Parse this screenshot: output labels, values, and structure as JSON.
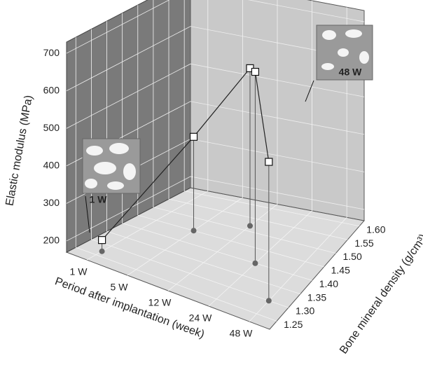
{
  "chart_data": {
    "type": "scatter3d",
    "ylabel": "Elastic modulus (MPa)",
    "xlabel": "Period after implantation (week)",
    "zlabel": "Bone mineral density (g/cm³)",
    "categories": [
      "1 W",
      "5 W",
      "12 W",
      "24 W",
      "48 W"
    ],
    "values": [
      200,
      420,
      590,
      680,
      540
    ],
    "bmd": [
      1.27,
      1.45,
      1.52,
      1.4,
      1.3
    ],
    "ylim": [
      170,
      730
    ],
    "yticks": [
      200,
      300,
      400,
      500,
      600,
      700
    ],
    "zlim": [
      1.22,
      1.62
    ],
    "zticks": [
      1.25,
      {
        "value": 1.3,
        "label": "1.30"
      },
      1.35,
      {
        "value": 1.4,
        "label": "1.40"
      },
      1.45,
      {
        "value": 1.5,
        "label": "1.50"
      },
      1.55,
      {
        "value": 1.6,
        "label": "1.60"
      }
    ],
    "annotations": [
      "1 W",
      "48 W"
    ],
    "grid": true
  }
}
